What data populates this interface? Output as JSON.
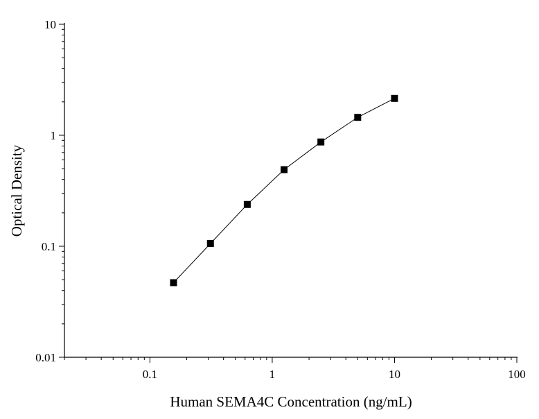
{
  "chart_data": {
    "type": "line",
    "title": "",
    "xlabel": "Human SEMA4C Concentration (ng/mL)",
    "ylabel": "Optical Density",
    "xscale": "log",
    "yscale": "log",
    "xlim": [
      0.02,
      100
    ],
    "ylim": [
      0.01,
      10
    ],
    "x_ticks": [
      {
        "value": 0.1,
        "label": "0.1"
      },
      {
        "value": 1,
        "label": "1"
      },
      {
        "value": 10,
        "label": "10"
      },
      {
        "value": 100,
        "label": "100"
      }
    ],
    "y_ticks": [
      {
        "value": 0.01,
        "label": "0.01"
      },
      {
        "value": 0.1,
        "label": "0.1"
      },
      {
        "value": 1,
        "label": "1"
      },
      {
        "value": 10,
        "label": "10"
      }
    ],
    "grid": false,
    "series": [
      {
        "x": [
          0.156,
          0.3125,
          0.625,
          1.25,
          2.5,
          5,
          10
        ],
        "y": [
          0.047,
          0.106,
          0.238,
          0.49,
          0.87,
          1.45,
          2.15
        ],
        "marker": "square",
        "color": "#000000"
      }
    ]
  }
}
